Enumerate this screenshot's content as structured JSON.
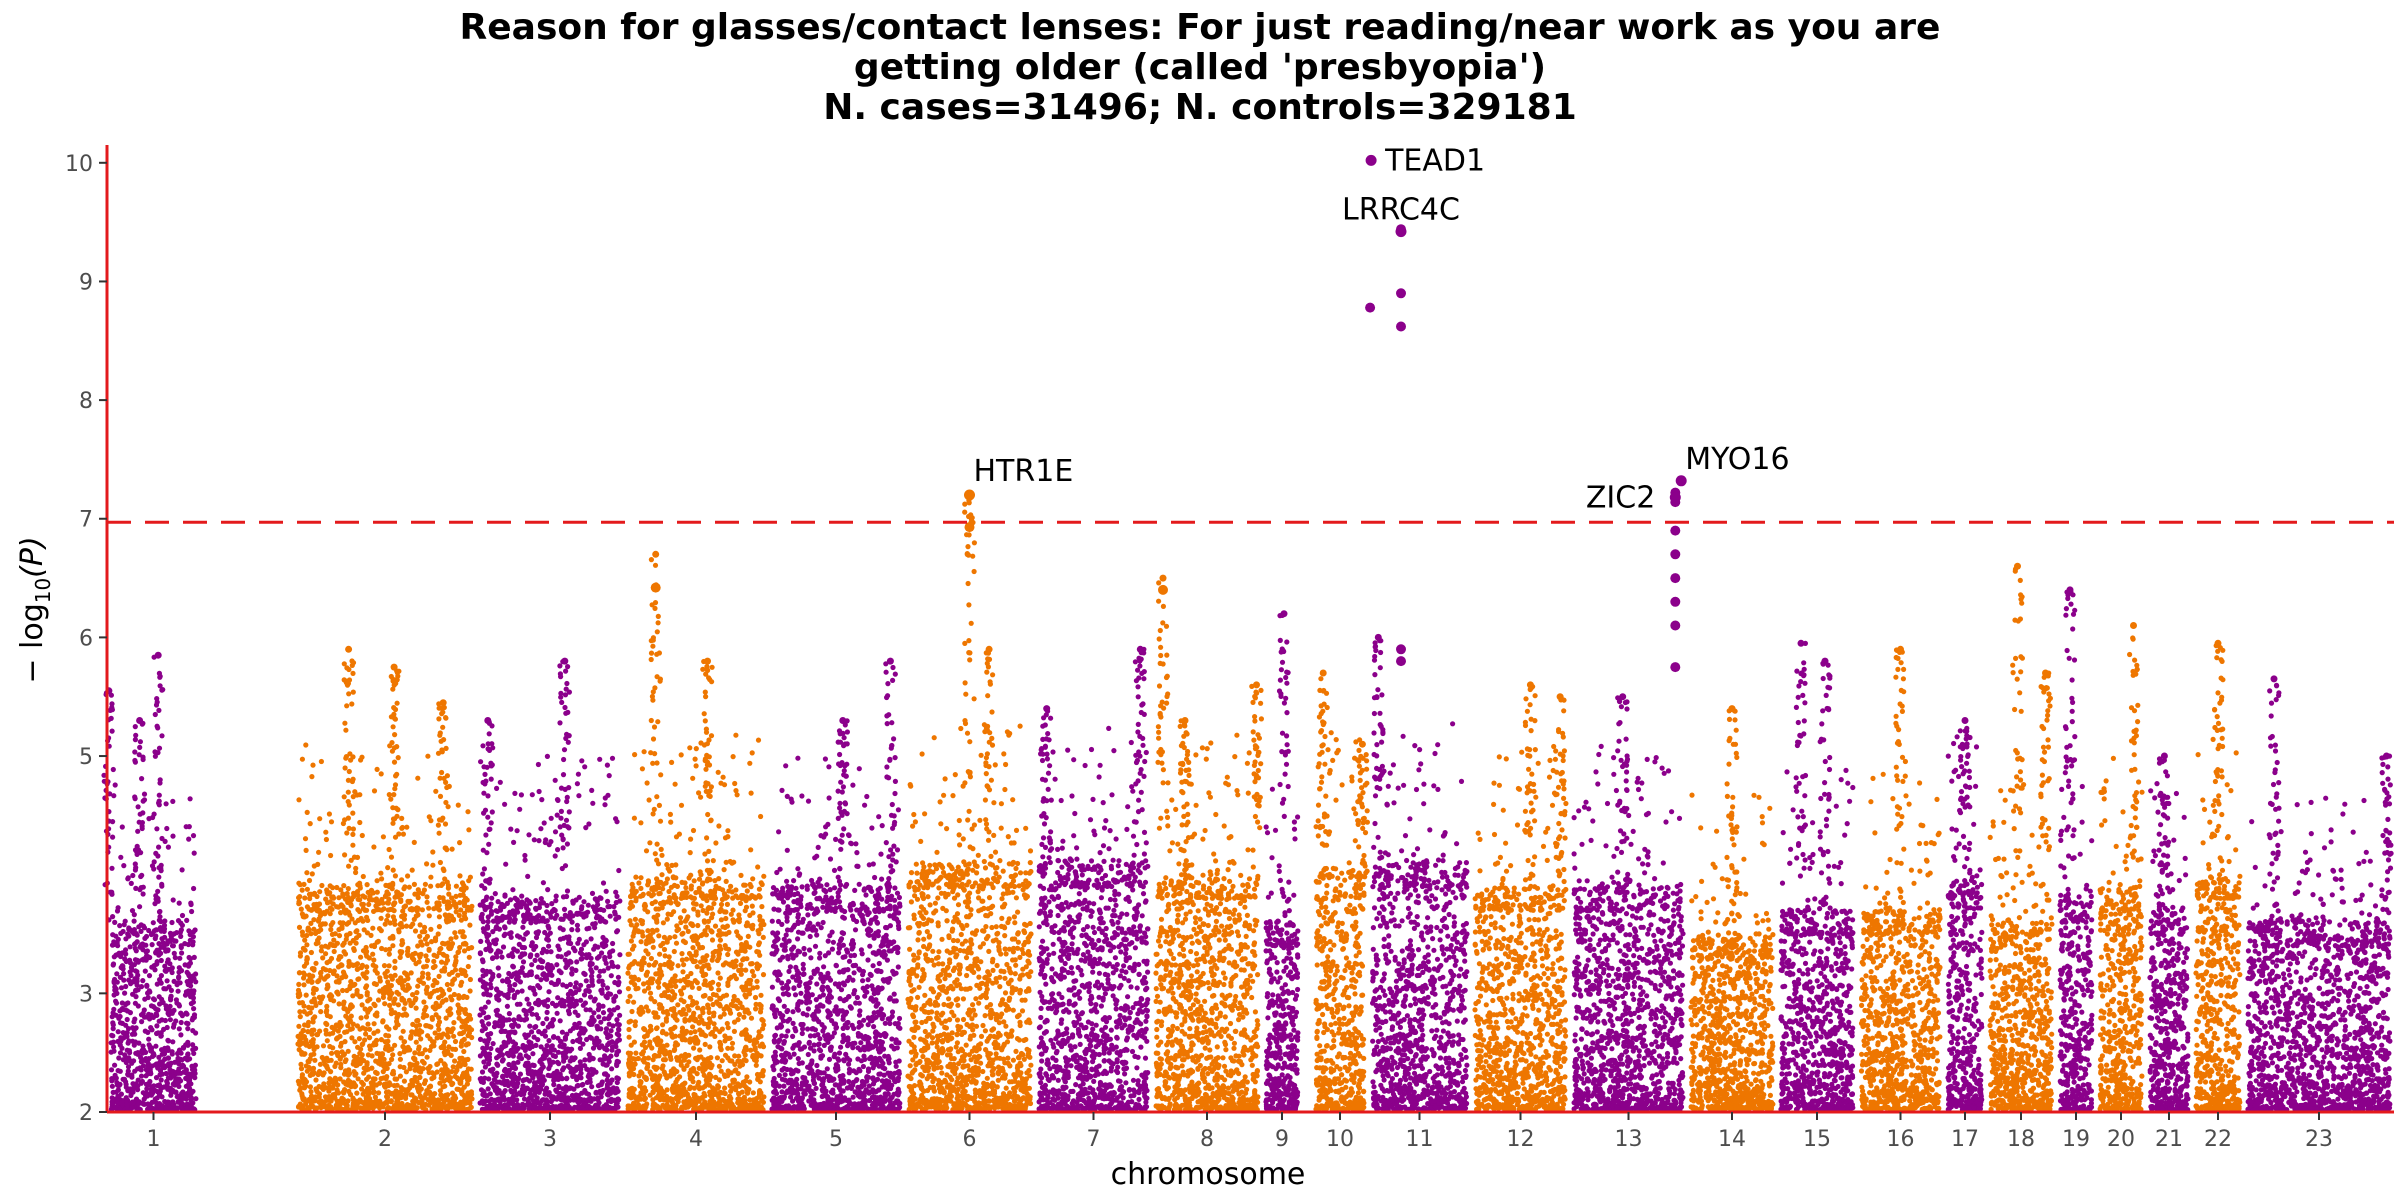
{
  "chart_data": {
    "type": "scatter",
    "subtype": "manhattan",
    "title": "Reason for glasses/contact lenses: For just reading/near work as you are getting older (called 'presbyopia')",
    "title_lines": [
      "Reason for glasses/contact lenses: For just reading/near work as you are",
      "getting older (called 'presbyopia')",
      "N. cases=31496; N. controls=329181"
    ],
    "subtitle": "N. cases=31496; N. controls=329181",
    "xlabel": "chromosome",
    "ylabel_prefix": "− log",
    "ylabel_sub": "10",
    "ylabel_suffix": "(P)",
    "ylim": [
      2,
      10.15
    ],
    "yticks": [
      2,
      3,
      5,
      6,
      7,
      8,
      9,
      10
    ],
    "significance_threshold": 6.97,
    "grid": false,
    "legend": "none",
    "colors": {
      "odd": "#8B008B",
      "even": "#EE7600",
      "threshold": "#E31A1C",
      "axis": "#E31A1C"
    },
    "chromosomes": [
      {
        "label": "1",
        "color": "odd",
        "base": 4.0,
        "peaks": [
          [
            0.02,
            5.55
          ],
          [
            0.55,
            5.85
          ],
          [
            0.35,
            5.3
          ]
        ]
      },
      {
        "label": "2",
        "color": "even",
        "base": 4.3,
        "peaks": [
          [
            0.3,
            5.9
          ],
          [
            0.55,
            5.75
          ],
          [
            0.82,
            5.45
          ]
        ]
      },
      {
        "label": "3",
        "color": "odd",
        "base": 4.2,
        "peaks": [
          [
            0.6,
            5.8
          ],
          [
            0.08,
            5.3
          ]
        ]
      },
      {
        "label": "4",
        "color": "even",
        "base": 4.4,
        "peaks": [
          [
            0.22,
            6.7
          ],
          [
            0.58,
            5.8
          ]
        ]
      },
      {
        "label": "5",
        "color": "odd",
        "base": 4.3,
        "peaks": [
          [
            0.55,
            5.3
          ],
          [
            0.9,
            5.8
          ]
        ]
      },
      {
        "label": "6",
        "color": "even",
        "base": 4.5,
        "peaks": [
          [
            0.5,
            7.2
          ],
          [
            0.65,
            5.9
          ]
        ]
      },
      {
        "label": "7",
        "color": "odd",
        "base": 4.5,
        "peaks": [
          [
            0.9,
            5.9
          ],
          [
            0.1,
            5.4
          ]
        ]
      },
      {
        "label": "8",
        "color": "even",
        "base": 4.4,
        "peaks": [
          [
            0.1,
            6.5
          ],
          [
            0.3,
            5.3
          ],
          [
            0.95,
            5.6
          ]
        ]
      },
      {
        "label": "9",
        "color": "odd",
        "base": 4.0,
        "peaks": [
          [
            0.55,
            6.2
          ]
        ]
      },
      {
        "label": "10",
        "color": "even",
        "base": 4.4,
        "peaks": [
          [
            0.2,
            5.7
          ],
          [
            0.9,
            5.1
          ]
        ]
      },
      {
        "label": "11",
        "color": "odd",
        "base": 4.5,
        "peaks": [
          [
            0.1,
            6.0
          ]
        ]
      },
      {
        "label": "12",
        "color": "even",
        "base": 4.3,
        "peaks": [
          [
            0.6,
            5.6
          ],
          [
            0.9,
            5.5
          ]
        ]
      },
      {
        "label": "13",
        "color": "odd",
        "base": 4.3,
        "peaks": [
          [
            0.45,
            5.5
          ]
        ]
      },
      {
        "label": "14",
        "color": "even",
        "base": 3.9,
        "peaks": [
          [
            0.5,
            5.4
          ]
        ]
      },
      {
        "label": "15",
        "color": "odd",
        "base": 4.1,
        "peaks": [
          [
            0.3,
            5.95
          ],
          [
            0.6,
            5.8
          ]
        ]
      },
      {
        "label": "16",
        "color": "even",
        "base": 4.1,
        "peaks": [
          [
            0.5,
            5.9
          ]
        ]
      },
      {
        "label": "17",
        "color": "odd",
        "base": 4.4,
        "peaks": [
          [
            0.5,
            5.3
          ]
        ]
      },
      {
        "label": "18",
        "color": "even",
        "base": 4.0,
        "peaks": [
          [
            0.45,
            6.6
          ],
          [
            0.85,
            5.7
          ]
        ]
      },
      {
        "label": "19",
        "color": "odd",
        "base": 4.2,
        "peaks": [
          [
            0.35,
            6.4
          ]
        ]
      },
      {
        "label": "20",
        "color": "even",
        "base": 4.3,
        "peaks": [
          [
            0.75,
            6.1
          ]
        ]
      },
      {
        "label": "21",
        "color": "odd",
        "base": 4.1,
        "peaks": [
          [
            0.4,
            5.0
          ]
        ]
      },
      {
        "label": "22",
        "color": "even",
        "base": 4.4,
        "peaks": [
          [
            0.5,
            5.95
          ]
        ]
      },
      {
        "label": "23",
        "color": "odd",
        "base": 4.0,
        "peaks": [
          [
            0.2,
            5.65
          ],
          [
            0.95,
            5.0
          ]
        ]
      }
    ],
    "hits": [
      {
        "gene": "TEAD1",
        "chrom": "11",
        "pos": 0.03,
        "p": 10.02,
        "color": "odd"
      },
      {
        "gene": "LRRC4C",
        "chrom": "11",
        "pos": 0.32,
        "p": 9.42,
        "color": "odd"
      },
      {
        "gene": "HTR1E",
        "chrom": "6",
        "pos": 0.5,
        "p": 7.2,
        "color": "even"
      },
      {
        "gene": "MYO16",
        "chrom": "13",
        "pos": 0.95,
        "p": 7.32,
        "color": "odd"
      },
      {
        "gene": "ZIC2",
        "chrom": "13",
        "pos": 0.9,
        "p": 7.18,
        "color": "odd"
      }
    ],
    "secondary_points": [
      {
        "chrom": "11",
        "pos": 0.02,
        "p": 8.78,
        "color": "odd"
      },
      {
        "chrom": "11",
        "pos": 0.32,
        "p": 8.9,
        "color": "odd"
      },
      {
        "chrom": "11",
        "pos": 0.32,
        "p": 8.62,
        "color": "odd"
      },
      {
        "chrom": "11",
        "pos": 0.32,
        "p": 9.44,
        "color": "odd"
      },
      {
        "chrom": "13",
        "pos": 0.9,
        "p": 7.22,
        "color": "odd"
      },
      {
        "chrom": "13",
        "pos": 0.9,
        "p": 7.14,
        "color": "odd"
      },
      {
        "chrom": "13",
        "pos": 0.9,
        "p": 6.9,
        "color": "odd"
      },
      {
        "chrom": "13",
        "pos": 0.9,
        "p": 6.7,
        "color": "odd"
      },
      {
        "chrom": "13",
        "pos": 0.9,
        "p": 6.5,
        "color": "odd"
      },
      {
        "chrom": "13",
        "pos": 0.9,
        "p": 6.3,
        "color": "odd"
      },
      {
        "chrom": "13",
        "pos": 0.9,
        "p": 6.1,
        "color": "odd"
      },
      {
        "chrom": "13",
        "pos": 0.9,
        "p": 5.75,
        "color": "odd"
      },
      {
        "chrom": "6",
        "pos": 0.5,
        "p": 6.93,
        "color": "even"
      },
      {
        "chrom": "4",
        "pos": 0.22,
        "p": 6.42,
        "color": "even"
      },
      {
        "chrom": "8",
        "pos": 0.1,
        "p": 6.4,
        "color": "even"
      },
      {
        "chrom": "11",
        "pos": 0.32,
        "p": 5.9,
        "color": "odd"
      },
      {
        "chrom": "11",
        "pos": 0.32,
        "p": 5.8,
        "color": "odd"
      }
    ]
  }
}
